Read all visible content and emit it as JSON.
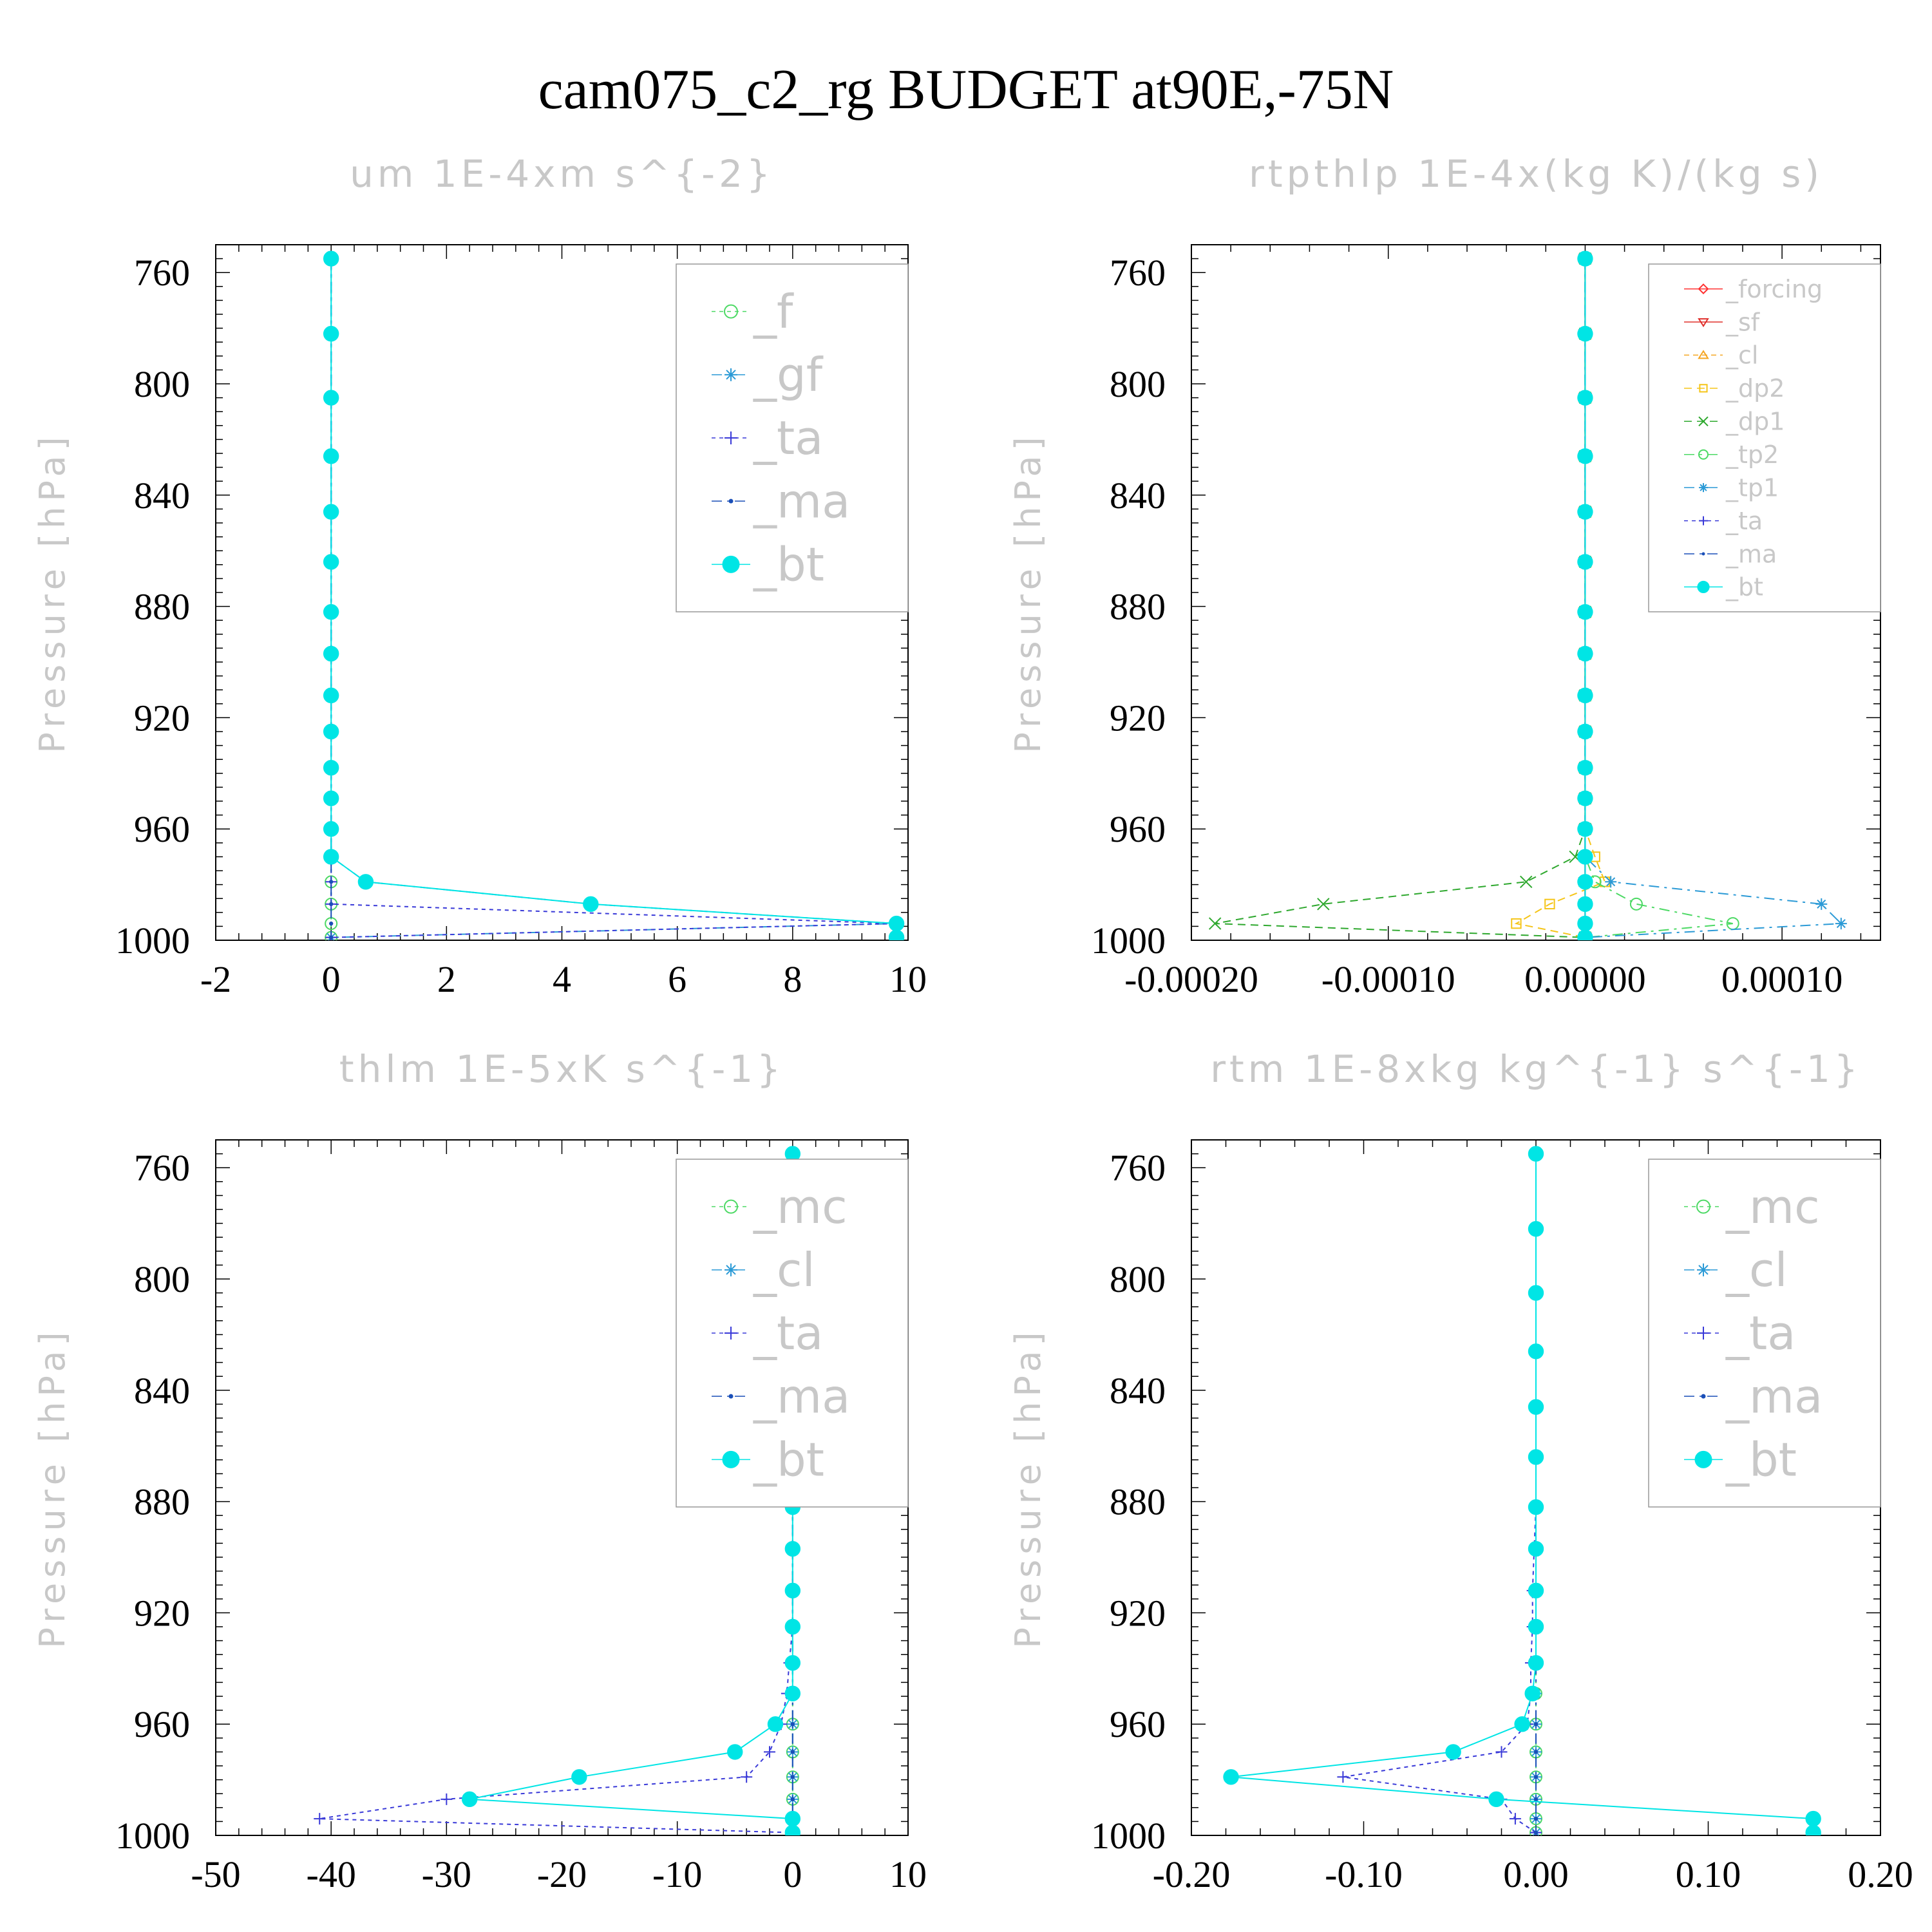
{
  "page": {
    "title": "cam075_c2_rg  BUDGET at90E,-75N"
  },
  "chart_data": [
    {
      "type": "line",
      "title": "um  1E-4xm s^{-2}",
      "ylabel": "Pressure [hPa]",
      "xlabel": "",
      "ylim": [
        750,
        1000
      ],
      "y_inverted": true,
      "y_ticks": [
        760,
        800,
        840,
        880,
        920,
        960,
        1000
      ],
      "y_tick_labels": [
        "760",
        "800",
        "840",
        "880",
        "920",
        "960",
        "1000"
      ],
      "xlim": [
        -2,
        10
      ],
      "x_ticks": [
        -2,
        0,
        2,
        4,
        6,
        8,
        10
      ],
      "x_tick_labels": [
        "-2",
        "0",
        "2",
        "4",
        "6",
        "8",
        "10"
      ],
      "legend_position": "top-right",
      "legend_size": "large",
      "y_levels": [
        755,
        782,
        805,
        826,
        846,
        864,
        882,
        897,
        912,
        925,
        938,
        949,
        960,
        970,
        979,
        987,
        994,
        999
      ],
      "series": [
        {
          "name": "_f",
          "color": "#4cd964",
          "marker": "circle-open",
          "dash": "6,6",
          "values": [
            0,
            0,
            0,
            0,
            0,
            0,
            0,
            0,
            0,
            0,
            0,
            0,
            0,
            0,
            0,
            0,
            0,
            0
          ]
        },
        {
          "name": "_gf",
          "color": "#2b9ad6",
          "marker": "asterisk",
          "dash": "16,8,4,8",
          "values": [
            0,
            0,
            0,
            0,
            0,
            0,
            0,
            0,
            0,
            0,
            0,
            0,
            0,
            0,
            0.6,
            4.5,
            9.8,
            0
          ]
        },
        {
          "name": "_ta",
          "color": "#3a3ad8",
          "marker": "plus",
          "dash": "6,6",
          "values": [
            0,
            0,
            0,
            0,
            0,
            0,
            0,
            0,
            0,
            0,
            0,
            0,
            0,
            0,
            0,
            0,
            9.8,
            0
          ]
        },
        {
          "name": "_ma",
          "color": "#1a4fb8",
          "marker": "dot",
          "dash": "16,8,4,8",
          "values": [
            0,
            0,
            0,
            0,
            0,
            0,
            0,
            0,
            0,
            0,
            0,
            0,
            0,
            0,
            0,
            0,
            0,
            0
          ]
        },
        {
          "name": "_bt",
          "color": "#00e5e5",
          "marker": "circle-filled",
          "dash": "",
          "values": [
            0,
            0,
            0,
            0,
            0,
            0,
            0,
            0,
            0,
            0,
            0,
            0,
            0,
            0,
            0.6,
            4.5,
            9.8,
            9.8
          ]
        }
      ]
    },
    {
      "type": "line",
      "title": "rtpthlp  1E-4x(kg K)/(kg s)",
      "ylabel": "Pressure [hPa]",
      "xlabel": "",
      "ylim": [
        750,
        1000
      ],
      "y_inverted": true,
      "y_ticks": [
        760,
        800,
        840,
        880,
        920,
        960,
        1000
      ],
      "y_tick_labels": [
        "760",
        "800",
        "840",
        "880",
        "920",
        "960",
        "1000"
      ],
      "xlim": [
        -0.0002,
        0.00015
      ],
      "x_ticks": [
        -0.0002,
        -0.0001,
        0.0,
        0.0001
      ],
      "x_tick_labels": [
        "-0.00020",
        "-0.00010",
        "0.00000",
        "0.00010"
      ],
      "legend_position": "top-right",
      "legend_size": "small",
      "y_levels": [
        755,
        782,
        805,
        826,
        846,
        864,
        882,
        897,
        912,
        925,
        938,
        949,
        960,
        970,
        979,
        987,
        994,
        999
      ],
      "series": [
        {
          "name": "_forcing",
          "color": "#ff3030",
          "marker": "diamond",
          "dash": "",
          "values": [
            0,
            0,
            0,
            0,
            0,
            0,
            0,
            0,
            0,
            0,
            0,
            0,
            0,
            0,
            0,
            0,
            0,
            0
          ]
        },
        {
          "name": "_sf",
          "color": "#e0302c",
          "marker": "triangle-down",
          "dash": "",
          "values": [
            0,
            0,
            0,
            0,
            0,
            0,
            0,
            0,
            0,
            0,
            0,
            0,
            0,
            0,
            0,
            0,
            0,
            0
          ]
        },
        {
          "name": "_cl",
          "color": "#f5a623",
          "marker": "triangle-up",
          "dash": "8,6",
          "values": [
            0,
            0,
            0,
            0,
            0,
            0,
            0,
            0,
            0,
            0,
            0,
            0,
            0,
            0,
            0,
            0,
            0,
            0
          ]
        },
        {
          "name": "_dp2",
          "color": "#f5c518",
          "marker": "square",
          "dash": "12,8",
          "values": [
            0,
            0,
            0,
            0,
            0,
            0,
            0,
            0,
            0,
            0,
            0,
            0,
            0,
            5e-06,
            1e-05,
            -1.8e-05,
            -3.5e-05,
            0
          ]
        },
        {
          "name": "_dp1",
          "color": "#2ea82e",
          "marker": "cross",
          "dash": "12,8",
          "values": [
            0,
            0,
            0,
            0,
            0,
            0,
            0,
            0,
            0,
            0,
            0,
            0,
            0,
            -5e-06,
            -3e-05,
            -0.000133,
            -0.000188,
            0
          ]
        },
        {
          "name": "_tp2",
          "color": "#4cd964",
          "marker": "circle-open",
          "dash": "16,8,4,8",
          "values": [
            0,
            0,
            0,
            0,
            0,
            0,
            0,
            0,
            0,
            0,
            0,
            0,
            0,
            0,
            5e-06,
            2.6e-05,
            7.5e-05,
            0
          ]
        },
        {
          "name": "_tp1",
          "color": "#2b9ad6",
          "marker": "asterisk",
          "dash": "16,8,4,8",
          "values": [
            0,
            0,
            0,
            0,
            0,
            0,
            0,
            0,
            0,
            0,
            0,
            0,
            0,
            0,
            1.3e-05,
            0.00012,
            0.00013,
            0
          ]
        },
        {
          "name": "_ta",
          "color": "#3a3ad8",
          "marker": "plus",
          "dash": "6,6",
          "values": [
            0,
            0,
            0,
            0,
            0,
            0,
            0,
            0,
            0,
            0,
            0,
            0,
            0,
            0,
            0,
            0,
            0,
            0
          ]
        },
        {
          "name": "_ma",
          "color": "#1a4fb8",
          "marker": "dot",
          "dash": "16,8,4,8",
          "values": [
            0,
            0,
            0,
            0,
            0,
            0,
            0,
            0,
            0,
            0,
            0,
            0,
            0,
            0,
            0,
            0,
            0,
            0
          ]
        },
        {
          "name": "_bt",
          "color": "#00e5e5",
          "marker": "circle-filled",
          "dash": "",
          "values": [
            0,
            0,
            0,
            0,
            0,
            0,
            0,
            0,
            0,
            0,
            0,
            0,
            0,
            0,
            0,
            0,
            0,
            0
          ]
        }
      ]
    },
    {
      "type": "line",
      "title": "thlm  1E-5xK s^{-1}",
      "ylabel": "Pressure [hPa]",
      "xlabel": "",
      "ylim": [
        750,
        1000
      ],
      "y_inverted": true,
      "y_ticks": [
        760,
        800,
        840,
        880,
        920,
        960,
        1000
      ],
      "y_tick_labels": [
        "760",
        "800",
        "840",
        "880",
        "920",
        "960",
        "1000"
      ],
      "xlim": [
        -50,
        10
      ],
      "x_ticks": [
        -50,
        -40,
        -30,
        -20,
        -10,
        0,
        10
      ],
      "x_tick_labels": [
        "-50",
        "-40",
        "-30",
        "-20",
        "-10",
        "0",
        "10"
      ],
      "legend_position": "top-right",
      "legend_size": "large",
      "y_levels": [
        755,
        782,
        805,
        826,
        846,
        864,
        882,
        897,
        912,
        925,
        938,
        949,
        960,
        970,
        979,
        987,
        994,
        999
      ],
      "series": [
        {
          "name": "_mc",
          "color": "#4cd964",
          "marker": "circle-open",
          "dash": "6,6",
          "values": [
            0,
            0,
            0,
            0,
            0,
            0,
            0,
            0,
            0,
            0,
            0,
            0,
            0,
            0,
            0,
            0,
            0,
            0
          ]
        },
        {
          "name": "_cl",
          "color": "#2b9ad6",
          "marker": "asterisk",
          "dash": "16,8,4,8",
          "values": [
            0,
            0,
            0,
            0,
            0,
            0,
            0,
            0,
            0,
            0,
            0,
            0,
            0,
            0,
            0,
            0,
            0,
            0
          ]
        },
        {
          "name": "_ta",
          "color": "#3a3ad8",
          "marker": "plus",
          "dash": "6,6",
          "values": [
            0,
            0,
            0,
            0,
            0,
            0,
            0,
            0,
            0,
            0,
            -0.3,
            -0.5,
            -1,
            -2,
            -4,
            -30,
            -41,
            0
          ]
        },
        {
          "name": "_ma",
          "color": "#1a4fb8",
          "marker": "dot",
          "dash": "16,8,4,8",
          "values": [
            0,
            0,
            0,
            0,
            0,
            0,
            0,
            0,
            0,
            0,
            0,
            0,
            0,
            0,
            0,
            0,
            0,
            0
          ]
        },
        {
          "name": "_bt",
          "color": "#00e5e5",
          "marker": "circle-filled",
          "dash": "",
          "values": [
            0,
            0,
            0,
            0,
            0,
            0,
            0,
            0,
            0,
            0,
            0,
            0,
            -1.5,
            -5,
            -18.5,
            -28,
            0,
            0
          ]
        }
      ]
    },
    {
      "type": "line",
      "title": "rtm  1E-8xkg kg^{-1} s^{-1}",
      "ylabel": "Pressure [hPa]",
      "xlabel": "",
      "ylim": [
        750,
        1000
      ],
      "y_inverted": true,
      "y_ticks": [
        760,
        800,
        840,
        880,
        920,
        960,
        1000
      ],
      "y_tick_labels": [
        "760",
        "800",
        "840",
        "880",
        "920",
        "960",
        "1000"
      ],
      "xlim": [
        -0.2,
        0.2
      ],
      "x_ticks": [
        -0.2,
        -0.1,
        0.0,
        0.1,
        0.2
      ],
      "x_tick_labels": [
        "-0.20",
        "-0.10",
        "0.00",
        "0.10",
        "0.20"
      ],
      "legend_position": "top-right",
      "legend_size": "large",
      "y_levels": [
        755,
        782,
        805,
        826,
        846,
        864,
        882,
        897,
        912,
        925,
        938,
        949,
        960,
        970,
        979,
        987,
        994,
        999
      ],
      "series": [
        {
          "name": "_mc",
          "color": "#4cd964",
          "marker": "circle-open",
          "dash": "6,6",
          "values": [
            0,
            0,
            0,
            0,
            0,
            0,
            0,
            0,
            0,
            0,
            0,
            0,
            0,
            0,
            0,
            0,
            0,
            0
          ]
        },
        {
          "name": "_cl",
          "color": "#2b9ad6",
          "marker": "asterisk",
          "dash": "16,8,4,8",
          "values": [
            0,
            0,
            0,
            0,
            0,
            0,
            0,
            0,
            0,
            0,
            0,
            0,
            0,
            0,
            0,
            0,
            0,
            0
          ]
        },
        {
          "name": "_ta",
          "color": "#3a3ad8",
          "marker": "plus",
          "dash": "6,6",
          "values": [
            0,
            0,
            0,
            0,
            0,
            0,
            0,
            -0.001,
            -0.002,
            -0.002,
            -0.003,
            -0.003,
            -0.005,
            -0.02,
            -0.112,
            -0.02,
            -0.012,
            0
          ]
        },
        {
          "name": "_ma",
          "color": "#1a4fb8",
          "marker": "dot",
          "dash": "16,8,4,8",
          "values": [
            0,
            0,
            0,
            0,
            0,
            0,
            0,
            0,
            0,
            0,
            0,
            0,
            0,
            0,
            0,
            0,
            0,
            0
          ]
        },
        {
          "name": "_bt",
          "color": "#00e5e5",
          "marker": "circle-filled",
          "dash": "",
          "values": [
            0,
            0,
            0,
            0,
            0,
            0,
            0,
            0,
            0,
            0,
            0,
            -0.002,
            -0.008,
            -0.048,
            -0.177,
            -0.023,
            0.161,
            0.161
          ]
        }
      ]
    }
  ]
}
